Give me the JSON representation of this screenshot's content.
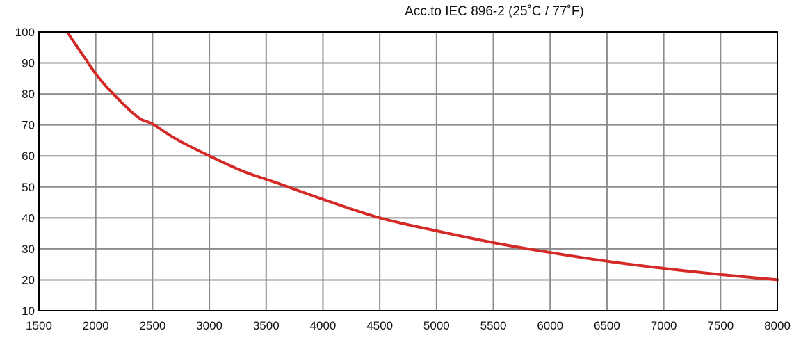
{
  "chart_data": {
    "type": "line",
    "title": "Acc.to IEC 896-2 (25˚C / 77˚F)",
    "xlabel": "",
    "ylabel": "",
    "xlim": [
      1500,
      8000
    ],
    "ylim": [
      10,
      100
    ],
    "x_ticks": [
      "1500",
      "2000",
      "2500",
      "3000",
      "3500",
      "4000",
      "4500",
      "5000",
      "5500",
      "6000",
      "6500",
      "7000",
      "7500",
      "8000"
    ],
    "y_ticks": [
      "100",
      "90",
      "80",
      "70",
      "60",
      "50",
      "40",
      "30",
      "20",
      "10"
    ],
    "grid": true,
    "series": [
      {
        "color": "#d42a27",
        "x": [
          1750,
          1800,
          1900,
          2000,
          2100,
          2200,
          2300,
          2400,
          2500,
          2700,
          3000,
          3300,
          3600,
          4000,
          4500,
          5000,
          5500,
          6000,
          6500,
          7000,
          7500,
          8000
        ],
        "y": [
          100,
          97.2,
          91.8,
          86.5,
          82.1,
          78.3,
          74.7,
          71.8,
          70.3,
          65.6,
          60.0,
          55.0,
          51.2,
          46.0,
          40.0,
          35.8,
          32.0,
          28.8,
          26.0,
          23.7,
          21.7,
          20.0
        ]
      }
    ]
  }
}
